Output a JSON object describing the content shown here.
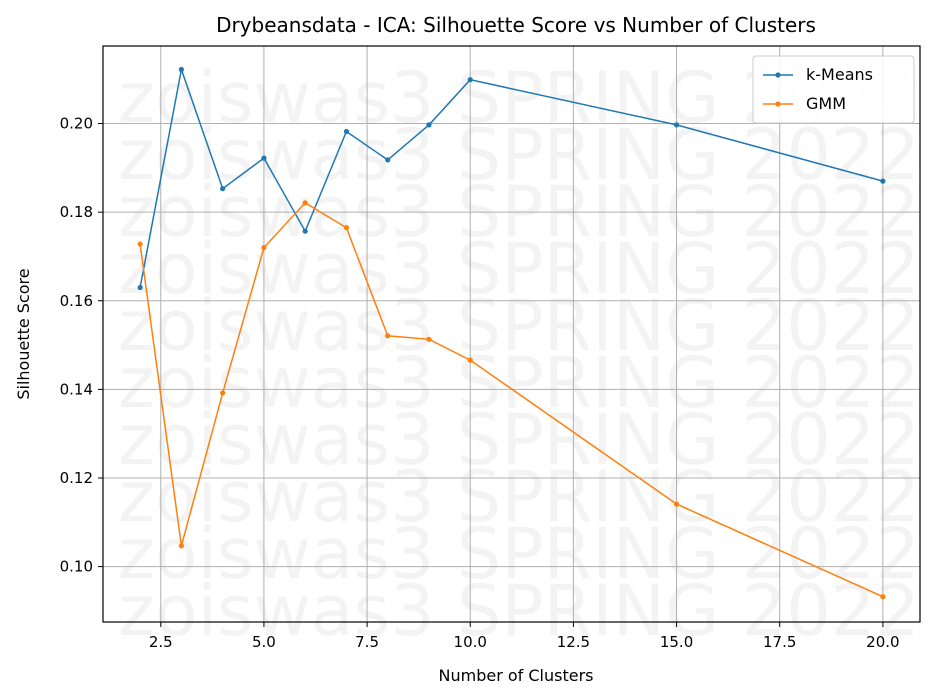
{
  "chart_data": {
    "type": "line",
    "title": "Drybeansdata - ICA: Silhouette Score vs Number of Clusters",
    "xlabel": "Number of Clusters",
    "ylabel": "Silhouette Score",
    "xlim": [
      1.1,
      20.9
    ],
    "ylim": [
      0.0875,
      0.2175
    ],
    "xticks": [
      2.5,
      5.0,
      7.5,
      10.0,
      12.5,
      15.0,
      17.5,
      20.0
    ],
    "xtick_labels": [
      "2.5",
      "5.0",
      "7.5",
      "10.0",
      "12.5",
      "15.0",
      "17.5",
      "20.0"
    ],
    "yticks": [
      0.1,
      0.12,
      0.14,
      0.16,
      0.18,
      0.2
    ],
    "ytick_labels": [
      "0.10",
      "0.12",
      "0.14",
      "0.16",
      "0.18",
      "0.20"
    ],
    "grid": true,
    "legend_position": "upper right",
    "watermark": "zoiswas3 SPRING 2022",
    "x": [
      2,
      3,
      4,
      5,
      6,
      7,
      8,
      9,
      10,
      15,
      20
    ],
    "series": [
      {
        "name": "k-Means",
        "color": "#1f77b4",
        "values": [
          0.163,
          0.2122,
          0.1853,
          0.1922,
          0.1757,
          0.1982,
          0.1918,
          0.1997,
          0.2099,
          0.1997,
          0.187
        ]
      },
      {
        "name": "GMM",
        "color": "#ff7f0e",
        "values": [
          0.1728,
          0.1047,
          0.1392,
          0.172,
          0.1821,
          0.1765,
          0.1521,
          0.1513,
          0.1466,
          0.1141,
          0.0932
        ]
      }
    ]
  }
}
